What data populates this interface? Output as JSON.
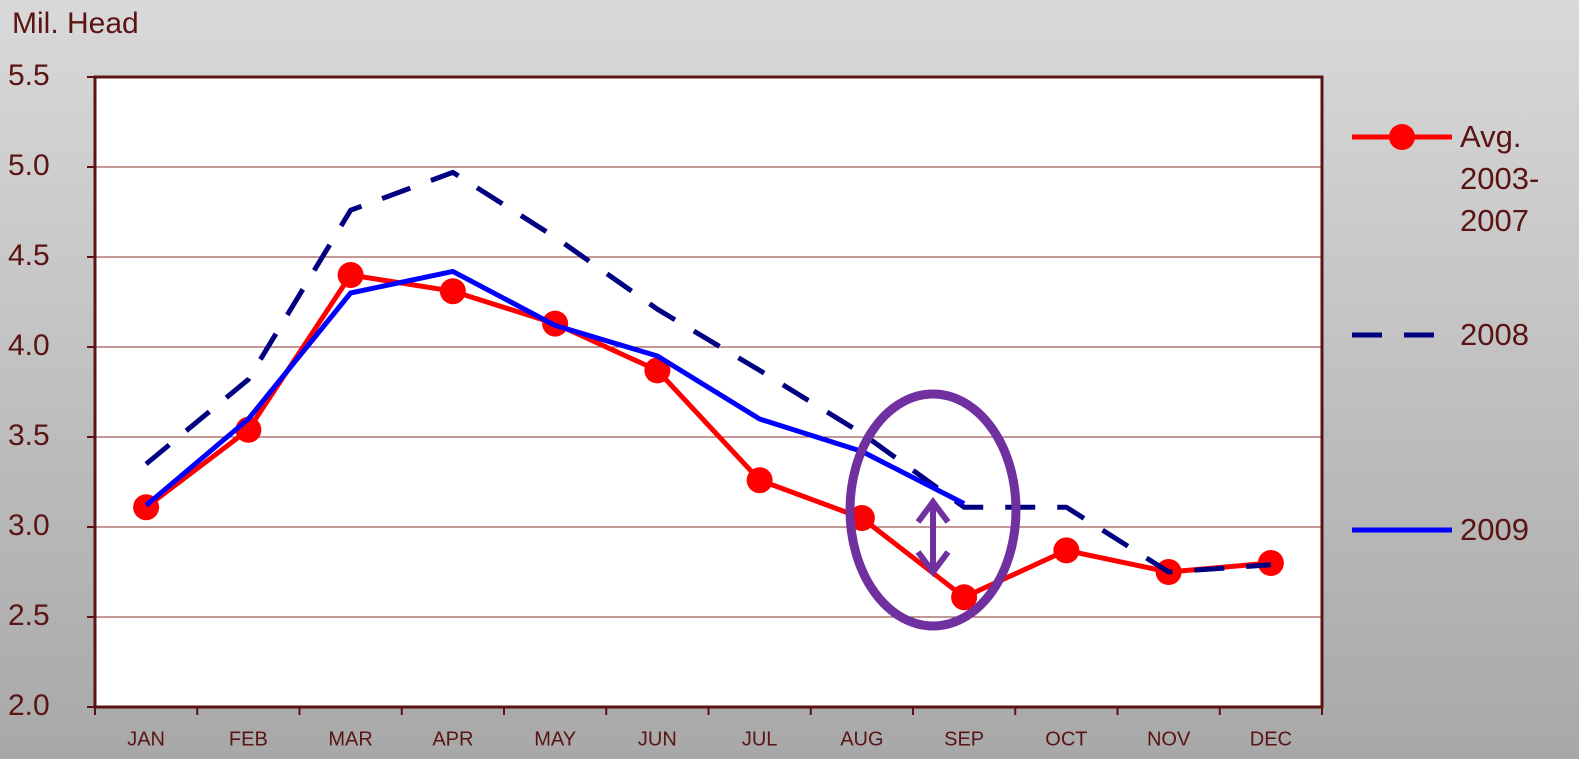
{
  "chart_data": {
    "type": "line",
    "y_label": "Mil. Head",
    "categories": [
      "JAN",
      "FEB",
      "MAR",
      "APR",
      "MAY",
      "JUN",
      "JUL",
      "AUG",
      "SEP",
      "OCT",
      "NOV",
      "DEC"
    ],
    "series": [
      {
        "name": "Avg. 2003-2007",
        "color": "#ff0000",
        "marker": "circle",
        "style": "solid",
        "values": [
          3.11,
          3.54,
          4.4,
          4.31,
          4.13,
          3.87,
          3.26,
          3.05,
          2.61,
          2.87,
          2.75,
          2.8
        ]
      },
      {
        "name": "2008",
        "color": "#000080",
        "style": "dashed",
        "values": [
          3.35,
          3.82,
          4.76,
          4.97,
          4.61,
          4.21,
          3.87,
          3.52,
          3.11,
          3.11,
          2.75,
          2.79
        ]
      },
      {
        "name": "2009",
        "color": "#0000ff",
        "style": "solid",
        "values": [
          3.12,
          3.6,
          4.3,
          4.42,
          4.12,
          3.95,
          3.6,
          3.42,
          3.13,
          null,
          null,
          null
        ]
      }
    ],
    "ylim": [
      2.0,
      5.5
    ],
    "yticks": [
      {
        "value": 2.0,
        "label": "2.0"
      },
      2.5,
      {
        "value": 3.0,
        "label": "3.0"
      },
      3.5,
      {
        "value": 4.0,
        "label": "4.0"
      },
      4.5,
      {
        "value": 5.0,
        "label": "5.0"
      },
      5.5
    ],
    "grid": true,
    "legend": "right"
  }
}
